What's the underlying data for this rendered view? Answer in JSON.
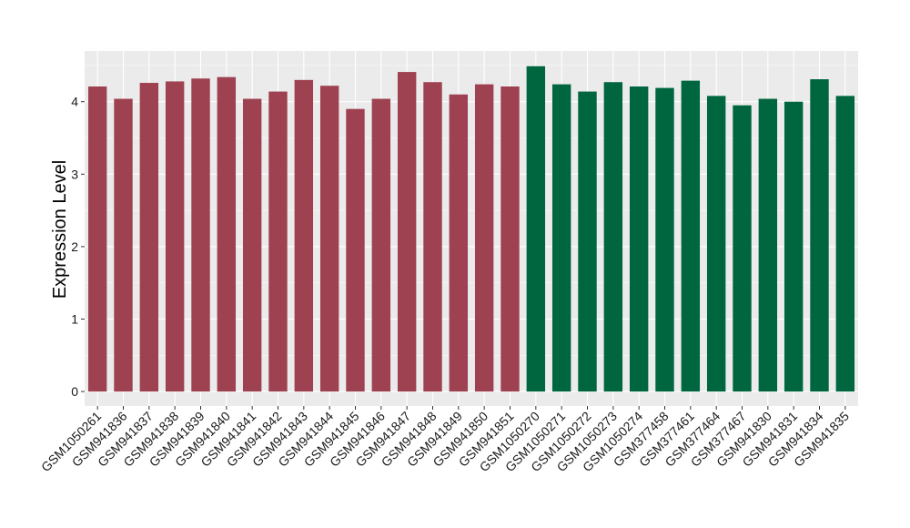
{
  "colors": {
    "panel_background": "#ebebeb",
    "gridline": "#ffffff",
    "group_1": "#9e4150",
    "group_2": "#00663f"
  },
  "chart_data": {
    "type": "bar",
    "title": "",
    "xlabel": "",
    "ylabel": "Expression Level",
    "ylim": [
      -0.2,
      4.7
    ],
    "yticks": [
      0,
      1,
      2,
      3,
      4
    ],
    "grid": true,
    "legend": "none",
    "categories": [
      "GSM1050261",
      "GSM941836",
      "GSM941837",
      "GSM941838",
      "GSM941839",
      "GSM941840",
      "GSM941841",
      "GSM941842",
      "GSM941843",
      "GSM941844",
      "GSM941845",
      "GSM941846",
      "GSM941847",
      "GSM941848",
      "GSM941849",
      "GSM941850",
      "GSM941851",
      "GSM1050270",
      "GSM1050271",
      "GSM1050272",
      "GSM1050273",
      "GSM1050274",
      "GSM377458",
      "GSM377461",
      "GSM377464",
      "GSM377467",
      "GSM941830",
      "GSM941831",
      "GSM941834",
      "GSM941835"
    ],
    "values": [
      4.21,
      4.04,
      4.26,
      4.28,
      4.32,
      4.34,
      4.04,
      4.14,
      4.3,
      4.22,
      3.9,
      4.04,
      4.41,
      4.27,
      4.1,
      4.24,
      4.21,
      4.49,
      4.24,
      4.14,
      4.27,
      4.21,
      4.19,
      4.29,
      4.08,
      3.95,
      4.04,
      4.0,
      4.31,
      4.08
    ],
    "groups": [
      1,
      1,
      1,
      1,
      1,
      1,
      1,
      1,
      1,
      1,
      1,
      1,
      1,
      1,
      1,
      1,
      1,
      2,
      2,
      2,
      2,
      2,
      2,
      2,
      2,
      2,
      2,
      2,
      2,
      2
    ]
  }
}
